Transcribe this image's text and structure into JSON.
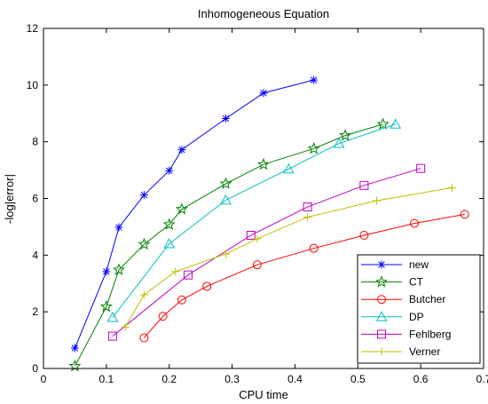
{
  "chart_data": {
    "type": "line",
    "title": "Inhomogeneous Equation",
    "xlabel": "CPU time",
    "ylabel": "-log|error|",
    "xlim": [
      0,
      0.7
    ],
    "ylim": [
      0,
      12
    ],
    "xticks": [
      0,
      0.1,
      0.2,
      0.3,
      0.4,
      0.5,
      0.6,
      0.7
    ],
    "xtick_labels": [
      "0",
      "0.1",
      "0.2",
      "0.3",
      "0.4",
      "0.5",
      "0.6",
      "0.7"
    ],
    "yticks": [
      0,
      2,
      4,
      6,
      8,
      10,
      12
    ],
    "ytick_labels": [
      "0",
      "2",
      "4",
      "6",
      "8",
      "10",
      "12"
    ],
    "grid": false,
    "legend_position": "bottom-right",
    "series": [
      {
        "name": "new",
        "color": "#0000ff",
        "marker": "asterisk",
        "x": [
          0.05,
          0.1,
          0.12,
          0.16,
          0.2,
          0.22,
          0.29,
          0.35,
          0.43
        ],
        "y": [
          0.72,
          3.42,
          4.98,
          6.12,
          6.98,
          7.72,
          8.82,
          9.72,
          10.18
        ]
      },
      {
        "name": "CT",
        "color": "#008000",
        "marker": "star",
        "x": [
          0.05,
          0.1,
          0.12,
          0.16,
          0.2,
          0.22,
          0.29,
          0.35,
          0.43,
          0.48,
          0.54
        ],
        "y": [
          0.08,
          2.18,
          3.48,
          4.38,
          5.08,
          5.62,
          6.52,
          7.2,
          7.76,
          8.22,
          8.62
        ]
      },
      {
        "name": "Butcher",
        "color": "#ff0000",
        "marker": "circle",
        "x": [
          0.16,
          0.19,
          0.22,
          0.26,
          0.34,
          0.43,
          0.51,
          0.59,
          0.67
        ],
        "y": [
          1.08,
          1.84,
          2.42,
          2.9,
          3.66,
          4.24,
          4.7,
          5.12,
          5.44
        ]
      },
      {
        "name": "DP",
        "color": "#00bfbf",
        "marker": "triangle",
        "x": [
          0.11,
          0.2,
          0.29,
          0.39,
          0.47,
          0.56
        ],
        "y": [
          1.8,
          4.4,
          5.94,
          7.04,
          7.94,
          8.62
        ]
      },
      {
        "name": "Fehlberg",
        "color": "#bf00bf",
        "marker": "square",
        "x": [
          0.11,
          0.23,
          0.33,
          0.42,
          0.51,
          0.6
        ],
        "y": [
          1.14,
          3.3,
          4.7,
          5.7,
          6.46,
          7.06
        ]
      },
      {
        "name": "Verner",
        "color": "#bfbf00",
        "marker": "plus",
        "x": [
          0.13,
          0.16,
          0.21,
          0.29,
          0.34,
          0.42,
          0.53,
          0.65
        ],
        "y": [
          1.46,
          2.6,
          3.42,
          4.04,
          4.58,
          5.34,
          5.92,
          6.38
        ]
      }
    ]
  }
}
